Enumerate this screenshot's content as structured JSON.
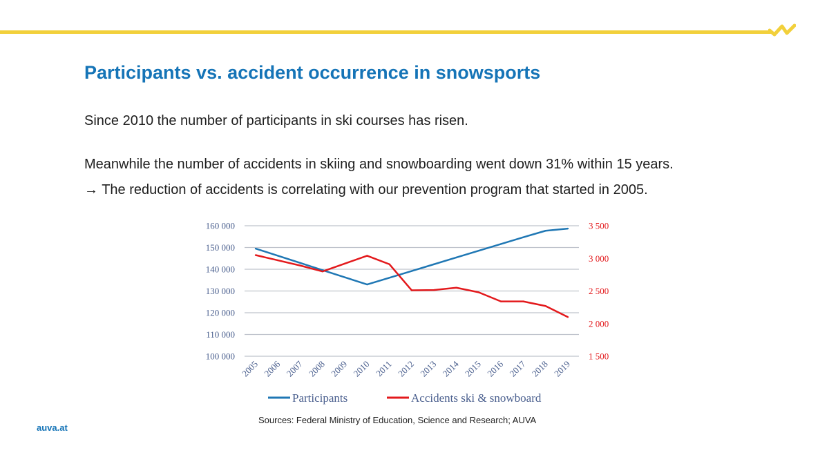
{
  "slide": {
    "title": "Participants vs. accident occurrence in snowsports",
    "line1": "Since 2010 the number of participants in ski courses has risen.",
    "line2": "Meanwhile the number of accidents in skiing and snowboarding went down 31% within 15 years.",
    "line3": "→ The reduction of accidents is correlating with our prevention program that started in 2005.",
    "sources": "Sources:  Federal Ministry of Education, Science and Research; AUVA",
    "footer": "auva.at"
  },
  "colors": {
    "accent_yellow": "#f2d03b",
    "brand_blue": "#1574b7",
    "series_blue": "#1f77b4",
    "series_red": "#e3191c",
    "axis_left_text": "#4a5f8e",
    "axis_right_text": "#e3191c",
    "grid": "#bfc3cc"
  },
  "chart_data": {
    "type": "line",
    "title": "",
    "xlabel": "",
    "categories": [
      "2005",
      "2006",
      "2007",
      "2008",
      "2009",
      "2010",
      "2011",
      "2012",
      "2013",
      "2014",
      "2015",
      "2016",
      "2017",
      "2018",
      "2019"
    ],
    "series": [
      {
        "name": "Participants",
        "axis": "left",
        "values": [
          149500,
          146200,
          142900,
          139600,
          136300,
          133000,
          136100,
          139200,
          142300,
          145400,
          148500,
          151600,
          154700,
          157700,
          158700
        ]
      },
      {
        "name": "Accidents ski & snowboard",
        "axis": "right",
        "values": [
          3050,
          2970,
          2890,
          2800,
          2920,
          3040,
          2910,
          2510,
          2515,
          2550,
          2480,
          2340,
          2340,
          2270,
          2100
        ]
      }
    ],
    "y_left": {
      "min": 100000,
      "max": 160000,
      "ticks": [
        100000,
        110000,
        120000,
        130000,
        140000,
        150000,
        160000
      ],
      "tick_labels": [
        "100 000",
        "110 000",
        "120 000",
        "130 000",
        "140 000",
        "150 000",
        "160 000"
      ]
    },
    "y_right": {
      "min": 1500,
      "max": 3500,
      "ticks": [
        1500,
        2000,
        2500,
        3000,
        3500
      ],
      "tick_labels": [
        "1 500",
        "2 000",
        "2 500",
        "3 000",
        "3 500"
      ]
    },
    "grid": true,
    "legend_position": "bottom"
  }
}
